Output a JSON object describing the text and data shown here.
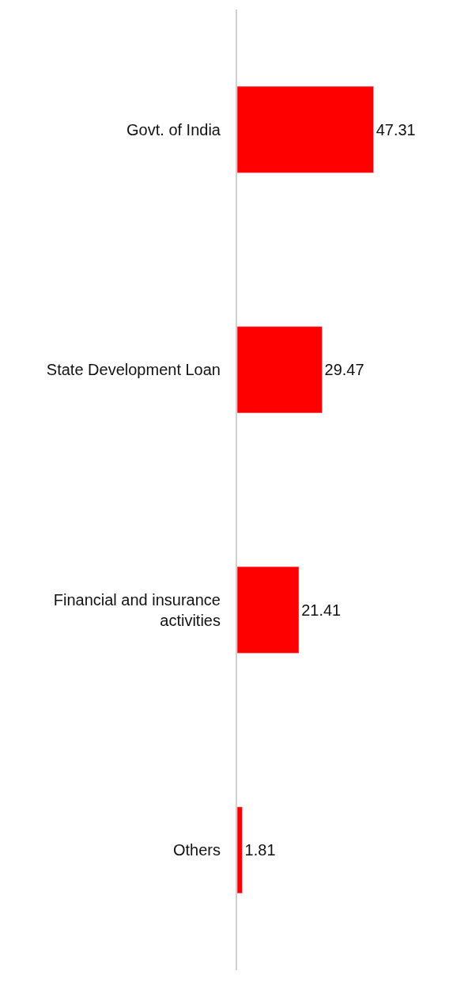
{
  "chart_data": {
    "type": "bar",
    "orientation": "horizontal",
    "categories": [
      "Govt. of India",
      "State Development Loan",
      "Financial and insurance activities",
      "Others"
    ],
    "values": [
      47.31,
      29.47,
      21.41,
      1.81
    ],
    "color": "#ff0000",
    "data_labels": true,
    "xlim": [
      0,
      80
    ],
    "tick_labels": "y",
    "legend": false
  }
}
